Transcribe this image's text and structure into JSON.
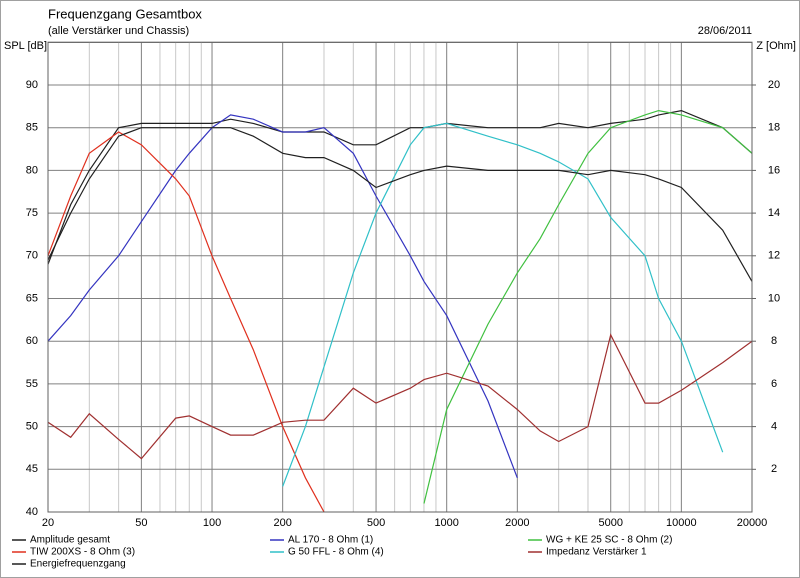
{
  "chart_data": {
    "type": "line",
    "title": "Frequenzgang Gesamtbox",
    "subtitle": "(alle Verstärker und Chassis)",
    "date": "28/06/2011",
    "y_label": "SPL [dB]",
    "y2_label": "Z [Ohm]",
    "log_x": true,
    "grid": true,
    "x": [
      20,
      25,
      30,
      40,
      50,
      70,
      80,
      100,
      120,
      150,
      200,
      250,
      300,
      400,
      500,
      700,
      800,
      1000,
      1500,
      2000,
      2500,
      3000,
      4000,
      5000,
      7000,
      8000,
      10000,
      15000,
      20000
    ],
    "xlim": [
      20,
      20000
    ],
    "xticks": [
      20,
      50,
      100,
      200,
      500,
      1000,
      2000,
      5000,
      10000,
      20000
    ],
    "x_grid": [
      30,
      40,
      60,
      70,
      80,
      90,
      300,
      400,
      600,
      700,
      800,
      900,
      3000,
      4000,
      6000,
      7000,
      8000,
      9000
    ],
    "ylim": [
      40,
      95
    ],
    "yticks": [
      40,
      45,
      50,
      55,
      60,
      65,
      70,
      75,
      80,
      85,
      90
    ],
    "y2lim": [
      0,
      22
    ],
    "y2ticks": [
      2,
      4,
      6,
      8,
      10,
      12,
      14,
      16,
      18,
      20
    ],
    "series": [
      {
        "name": "Amplitude gesamt",
        "color": "#202020",
        "values": [
          69,
          76,
          80,
          85,
          85.5,
          85.5,
          85.5,
          85.5,
          86,
          85.5,
          84.5,
          84.5,
          84.5,
          83,
          83,
          85,
          85,
          85.5,
          85,
          85,
          85,
          85.5,
          85,
          85.5,
          86,
          86.5,
          87,
          85,
          82
        ]
      },
      {
        "name": "AL 170 - 8 Ohm (1)",
        "color": "#3434c0",
        "values": [
          60,
          63,
          66,
          70,
          74,
          80,
          82,
          85,
          86.5,
          86,
          84.5,
          84.5,
          85,
          82,
          77,
          70,
          67,
          63,
          53,
          44,
          null,
          null,
          null,
          null,
          null,
          null,
          null,
          null,
          null
        ]
      },
      {
        "name": "WG + KE 25 SC - 8 Ohm (2)",
        "color": "#40c040",
        "values": [
          null,
          null,
          null,
          null,
          null,
          null,
          null,
          null,
          null,
          null,
          null,
          null,
          null,
          null,
          null,
          null,
          41,
          52,
          62,
          68,
          72,
          76,
          82,
          85,
          86.5,
          87,
          86.5,
          85,
          82
        ]
      },
      {
        "name": "TIW 200XS - 8 Ohm (3)",
        "color": "#e0301e",
        "values": [
          70,
          77,
          82,
          84.5,
          83,
          79,
          77,
          70,
          65,
          59,
          50,
          44,
          40,
          null,
          null,
          null,
          null,
          null,
          null,
          null,
          null,
          null,
          null,
          null,
          null,
          null,
          null,
          null,
          null
        ]
      },
      {
        "name": "G 50 FFL - 8 Ohm (4)",
        "color": "#30c0c8",
        "values": [
          null,
          null,
          null,
          null,
          null,
          null,
          null,
          null,
          null,
          null,
          43,
          50,
          57,
          68,
          75,
          83,
          85,
          85.5,
          84,
          83,
          82,
          81,
          79,
          74.5,
          70,
          65,
          60,
          47,
          null
        ]
      },
      {
        "name": "Impedanz Verstärker 1",
        "color": "#a03030",
        "axis": "y2",
        "values": [
          4.2,
          3.5,
          4.6,
          3.4,
          2.5,
          4.4,
          4.5,
          4.0,
          3.6,
          3.6,
          4.2,
          4.3,
          4.3,
          5.8,
          5.1,
          5.8,
          6.2,
          6.5,
          5.9,
          4.8,
          3.8,
          3.3,
          4.0,
          8.3,
          5.1,
          5.1,
          5.7,
          7.0,
          8.0
        ]
      },
      {
        "name": "Energiefrequenzgang",
        "color": "#202020",
        "values": [
          69.5,
          75,
          79,
          84,
          85,
          85,
          85,
          85,
          85,
          84,
          82,
          81.5,
          81.5,
          80,
          78,
          79.5,
          80,
          80.5,
          80,
          80,
          80,
          80,
          79.5,
          80,
          79.5,
          79,
          78,
          73,
          67
        ]
      }
    ]
  }
}
